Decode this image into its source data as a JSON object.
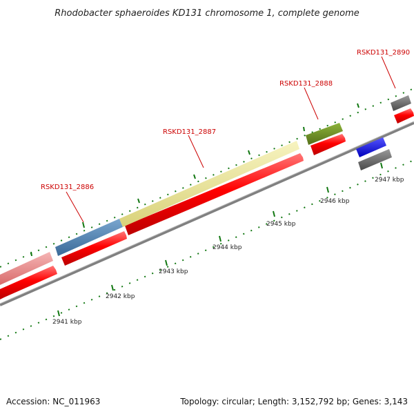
{
  "title": "Rhodobacter sphaeroides KD131 chromosome 1, complete genome",
  "footer": {
    "accession": "Accession: NC_011963",
    "summary": "Topology: circular; Length: 3,152,792 bp; Genes: 3,143"
  },
  "colors": {
    "cds": "#ff0000",
    "backbone": "#808080",
    "tick": "#117711",
    "label": "#cc0000",
    "feature_pink": "#e88a8a",
    "feature_steelblue": "#4a7fb0",
    "feature_khaki": "#ede89a",
    "feature_olive": "#6f8f1f",
    "feature_blue": "#1a1aee",
    "feature_gray": "#666666"
  },
  "gene_labels": [
    "RSKD131_2886",
    "RSKD131_2887",
    "RSKD131_2888",
    "RSKD131_2890"
  ],
  "kbp_labels": [
    "2941 kbp",
    "2942 kbp",
    "2943 kbp",
    "2944 kbp",
    "2945 kbp",
    "2946 kbp",
    "2947 kbp"
  ]
}
